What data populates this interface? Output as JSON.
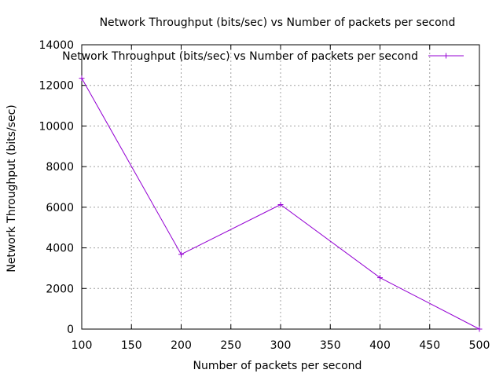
{
  "chart_data": {
    "type": "line",
    "title": "Network Throughput (bits/sec) vs Number of packets per second",
    "xlabel": "Number of packets per second",
    "ylabel": "Network Throughput (bits/sec)",
    "xlim": [
      100,
      500
    ],
    "ylim": [
      0,
      14000
    ],
    "xticks": [
      100,
      150,
      200,
      250,
      300,
      350,
      400,
      450,
      500
    ],
    "yticks": [
      0,
      2000,
      4000,
      6000,
      8000,
      10000,
      12000,
      14000
    ],
    "grid": true,
    "legend_position": "top-right",
    "series": [
      {
        "name": "Network Throughput (bits/sec) vs Number of packets per second",
        "color": "#9400d3",
        "marker": "plus",
        "x": [
          100,
          200,
          300,
          400,
          500
        ],
        "y": [
          12350,
          3680,
          6130,
          2530,
          0
        ]
      }
    ]
  }
}
